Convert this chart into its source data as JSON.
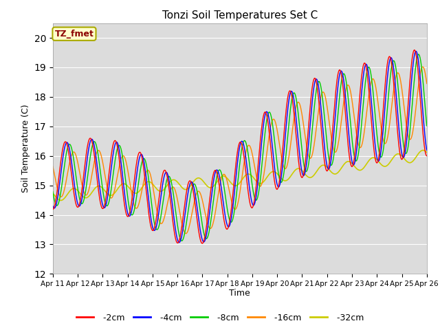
{
  "title": "Tonzi Soil Temperatures Set C",
  "xlabel": "Time",
  "ylabel": "Soil Temperature (C)",
  "ylim": [
    12.0,
    20.5
  ],
  "yticks": [
    12.0,
    13.0,
    14.0,
    15.0,
    16.0,
    17.0,
    18.0,
    19.0,
    20.0
  ],
  "x_labels": [
    "Apr 11",
    "Apr 12",
    "Apr 13",
    "Apr 14",
    "Apr 15",
    "Apr 16",
    "Apr 17",
    "Apr 18",
    "Apr 19",
    "Apr 20",
    "Apr 21",
    "Apr 22",
    "Apr 23",
    "Apr 24",
    "Apr 25",
    "Apr 26"
  ],
  "annotation_text": "TZ_fmet",
  "annotation_bg": "#ffffcc",
  "annotation_border": "#aaaa00",
  "annotation_text_color": "#8b0000",
  "colors": {
    "-2cm": "#ff0000",
    "-4cm": "#0000ff",
    "-8cm": "#00cc00",
    "-16cm": "#ff8800",
    "-32cm": "#cccc00"
  },
  "legend_labels": [
    "-2cm",
    "-4cm",
    "-8cm",
    "-16cm",
    "-32cm"
  ],
  "plot_bg": "#dcdcdc"
}
